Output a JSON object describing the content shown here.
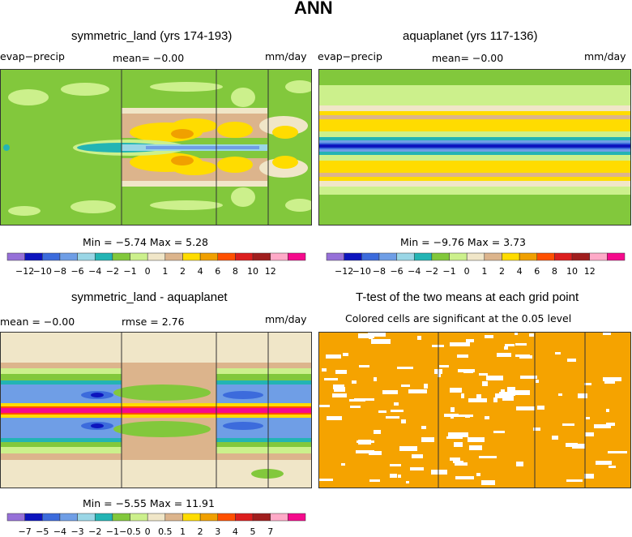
{
  "figure": {
    "title": "ANN"
  },
  "colors": {
    "palette_main": [
      "#9670d8",
      "#0d14be",
      "#3c6bdc",
      "#6f9ee6",
      "#9ad6e6",
      "#23b4b4",
      "#82c83c",
      "#ccf08c",
      "#f0e6c8",
      "#dcb48c",
      "#ffdc00",
      "#f0a000",
      "#ff5000",
      "#dc1e1e",
      "#a01e1e",
      "#ffaac8",
      "#f50a8c"
    ],
    "signif": "#f5a300"
  },
  "chart_data": [
    {
      "id": "p1",
      "type": "heatmap",
      "title": "symmetric_land (yrs 174-193)",
      "left_label": "evap−precip",
      "mean_label": "mean=  −0.00",
      "unit_label": "mm/day",
      "min_max": "Min =  −5.74 Max =   5.28",
      "colorbar_labels": [
        "−12",
        "−10",
        "−8",
        "−6",
        "−4",
        "−2",
        "−1",
        "0",
        "1",
        "2",
        "4",
        "6",
        "8",
        "10",
        "12"
      ],
      "field": "land"
    },
    {
      "id": "p2",
      "type": "heatmap",
      "title": "aquaplanet (yrs 117-136)",
      "left_label": "evap−precip",
      "mean_label": "mean=  −0.00",
      "unit_label": "mm/day",
      "min_max": "Min =  −9.76 Max =   3.73",
      "colorbar_labels": [
        "−12",
        "−10",
        "−8",
        "−6",
        "−4",
        "−2",
        "−1",
        "0",
        "1",
        "2",
        "4",
        "6",
        "8",
        "10",
        "12"
      ],
      "field": "aqua"
    },
    {
      "id": "p3",
      "type": "heatmap",
      "title": "symmetric_land - aquaplanet",
      "left_label": "mean =  −0.00",
      "mean_label": "rmse =    2.76",
      "unit_label": "mm/day",
      "min_max": "Min =  −5.55 Max =  11.91",
      "colorbar_labels": [
        "−7",
        "−5",
        "−4",
        "−3",
        "−2",
        "−1",
        "−0.5",
        "0",
        "0.5",
        "1",
        "2",
        "3",
        "4",
        "5",
        "7"
      ],
      "field": "diff"
    },
    {
      "id": "p4",
      "type": "heatmap",
      "title": "T-test of the two means at each grid point",
      "subtitle": "Colored cells are significant at the 0.05 level",
      "field": "ttest"
    }
  ]
}
